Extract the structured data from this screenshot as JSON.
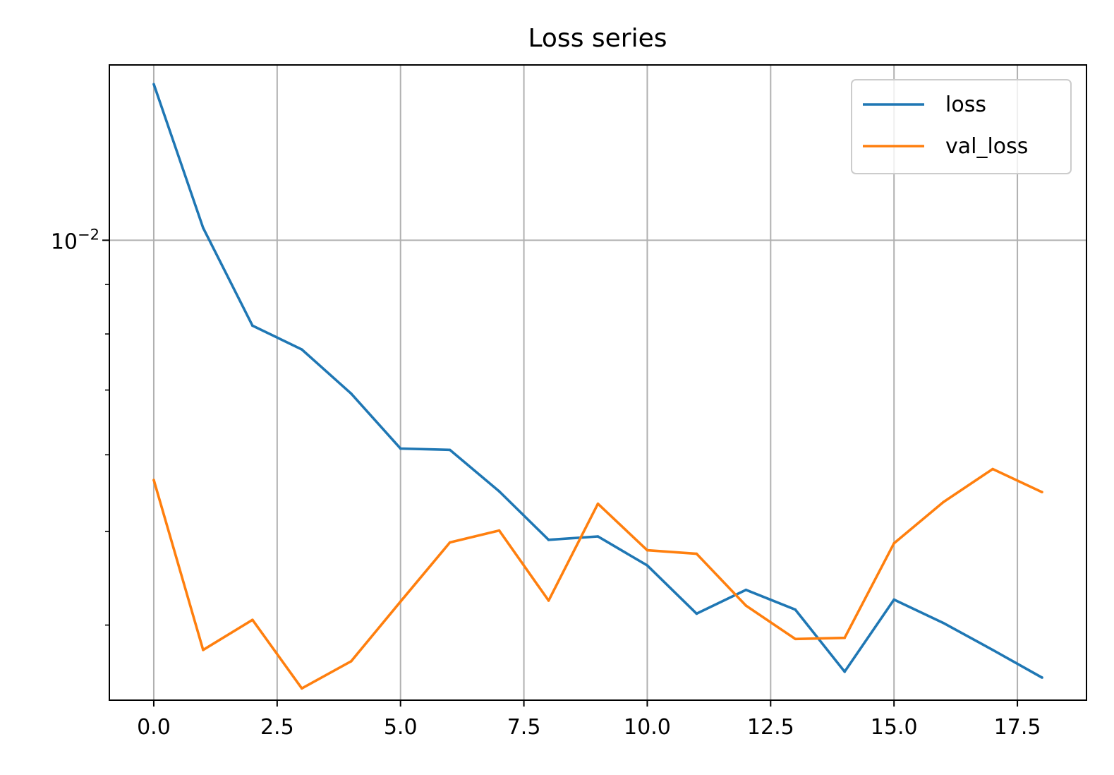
{
  "chart_data": {
    "type": "line",
    "title": "Loss series",
    "xlabel": "",
    "ylabel": "",
    "y_scale": "log",
    "grid": true,
    "legend_position": "upper right",
    "xlim": [
      -0.9,
      18.9
    ],
    "ylim": [
      0.003345,
      0.01518
    ],
    "x_ticks": [
      0,
      2.5,
      5,
      7.5,
      10,
      12.5,
      15,
      17.5
    ],
    "x_tick_labels": [
      "0.0",
      "2.5",
      "5.0",
      "7.5",
      "10.0",
      "12.5",
      "15.0",
      "17.5"
    ],
    "y_major_tick": {
      "value": 0.01,
      "base": "10",
      "exponent": "−2"
    },
    "y_minor_ticks": [
      0.004,
      0.005,
      0.006,
      0.007,
      0.008,
      0.009,
      0.02
    ],
    "x": [
      0,
      1,
      2,
      3,
      4,
      5,
      6,
      7,
      8,
      9,
      10,
      11,
      12,
      13,
      14,
      15,
      16,
      17,
      18
    ],
    "series": [
      {
        "name": "loss",
        "color": "#1f77b4",
        "values": [
          0.0145,
          0.0103,
          0.00816,
          0.00771,
          0.00694,
          0.00609,
          0.00607,
          0.0055,
          0.0049,
          0.00494,
          0.00461,
          0.00411,
          0.00435,
          0.00415,
          0.00358,
          0.00425,
          0.00402,
          0.00377,
          0.00353
        ]
      },
      {
        "name": "val_loss",
        "color": "#ff7f0e",
        "values": [
          0.00565,
          0.00377,
          0.00405,
          0.00344,
          0.00367,
          0.00423,
          0.00487,
          0.00501,
          0.00424,
          0.00534,
          0.00478,
          0.00474,
          0.00419,
          0.00387,
          0.00388,
          0.00486,
          0.00536,
          0.0058,
          0.00549
        ]
      }
    ]
  }
}
